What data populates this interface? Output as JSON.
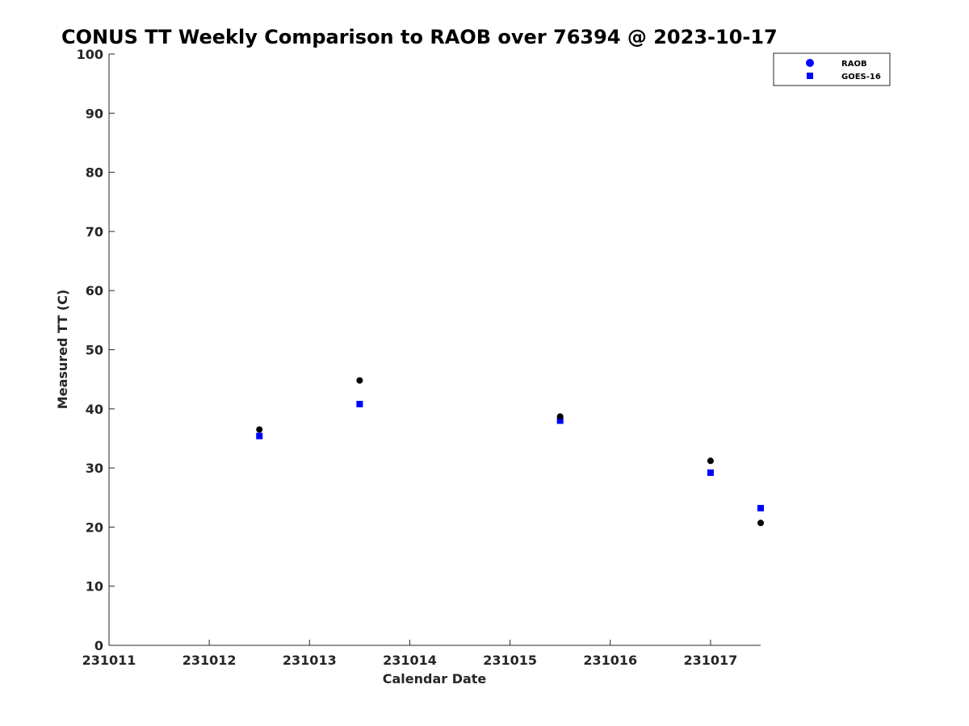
{
  "chart_data": {
    "type": "scatter",
    "title": "CONUS TT Weekly Comparison to RAOB over 76394 @ 2023-10-17",
    "xlabel": "Calendar Date",
    "ylabel": "Measured TT (C)",
    "x_ticks": [
      "231011",
      "231012",
      "231013",
      "231014",
      "231015",
      "231016",
      "231017"
    ],
    "y_ticks": [
      "0",
      "10",
      "20",
      "30",
      "40",
      "50",
      "60",
      "70",
      "80",
      "90",
      "100"
    ],
    "xlim": [
      231011,
      231017.5
    ],
    "ylim": [
      0,
      100
    ],
    "grid": false,
    "legend_position": "top-right",
    "series": [
      {
        "name": "RAOB",
        "marker": "circle",
        "color": "#000000",
        "legend_color": "#0000ff",
        "points": [
          {
            "x": 231012.5,
            "y": 36.5
          },
          {
            "x": 231013.5,
            "y": 44.8
          },
          {
            "x": 231015.5,
            "y": 38.7
          },
          {
            "x": 231017,
            "y": 31.2
          },
          {
            "x": 231017.5,
            "y": 20.7
          }
        ]
      },
      {
        "name": "GOES-16",
        "marker": "square",
        "color": "#0000ff",
        "legend_color": "#0000ff",
        "points": [
          {
            "x": 231012.5,
            "y": 35.4
          },
          {
            "x": 231013.5,
            "y": 40.8
          },
          {
            "x": 231015.5,
            "y": 38.0
          },
          {
            "x": 231017,
            "y": 29.2
          },
          {
            "x": 231017.5,
            "y": 23.2
          }
        ]
      }
    ]
  }
}
